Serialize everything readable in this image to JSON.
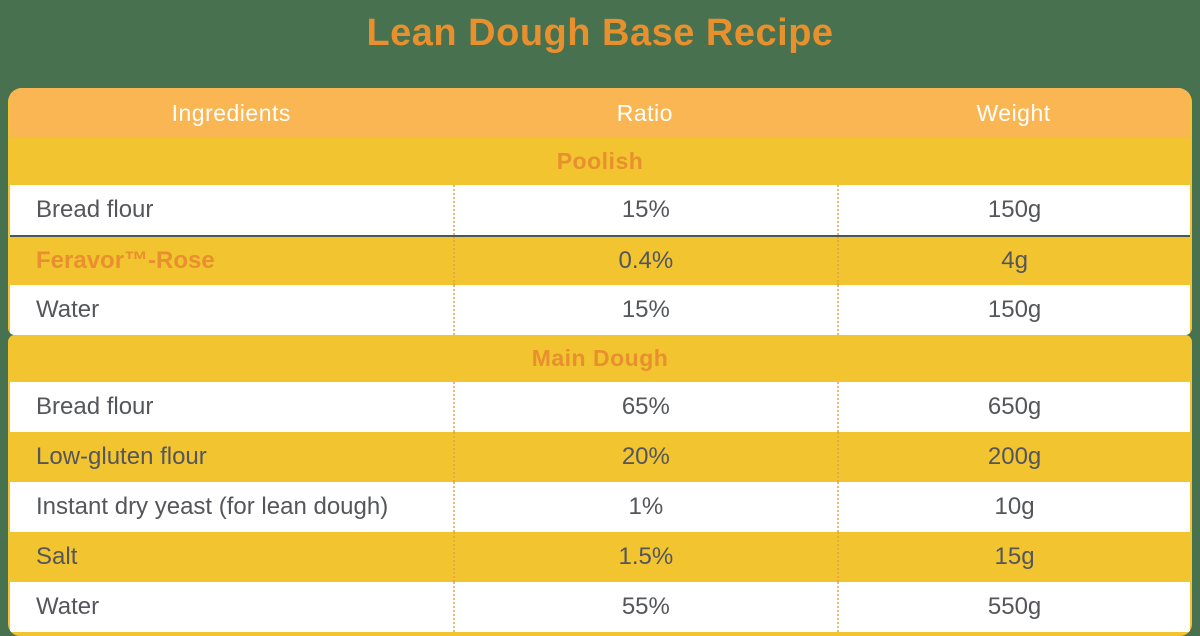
{
  "page": {
    "background_color": "#48714f",
    "accent_orange": "#e8902e",
    "row_yellow": "#f2c430",
    "header_orange": "#f9b652",
    "body_text_color": "#54565a",
    "highlight_border_color": "#45595b"
  },
  "title": "Lean Dough Base Recipe",
  "table": {
    "headers": [
      "Ingredients",
      "Ratio",
      "Weight"
    ],
    "sections": [
      {
        "name": "Poolish",
        "rows": [
          {
            "ingredient": "Bread flour",
            "ratio": "15%",
            "weight": "150g"
          },
          {
            "ingredient": "Feravor™-Rose",
            "ratio": "0.4%",
            "weight": "4g"
          },
          {
            "ingredient": "Water",
            "ratio": "15%",
            "weight": "150g"
          }
        ]
      },
      {
        "name": "Main Dough",
        "rows": [
          {
            "ingredient": "Bread flour",
            "ratio": "65%",
            "weight": "650g"
          },
          {
            "ingredient": "Low-gluten flour",
            "ratio": "20%",
            "weight": "200g"
          },
          {
            "ingredient": "Instant dry yeast (for lean dough)",
            "ratio": "1%",
            "weight": "10g"
          },
          {
            "ingredient": "Salt",
            "ratio": "1.5%",
            "weight": "15g"
          },
          {
            "ingredient": "Water",
            "ratio": "55%",
            "weight": "550g"
          }
        ]
      }
    ]
  }
}
